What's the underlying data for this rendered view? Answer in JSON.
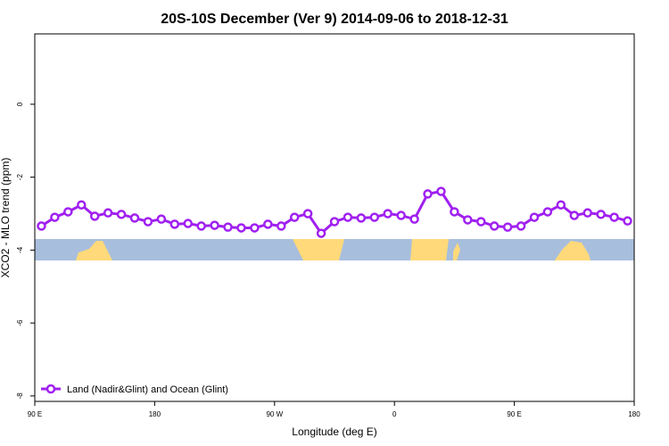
{
  "chart_data": {
    "type": "line",
    "title": "20S-10S December (Ver 9)   2014-09-06 to 2018-12-31",
    "xlabel": "Longitude (deg E)",
    "ylabel": "XCO2 - MLO trend (ppm)",
    "x": [
      95,
      105,
      115,
      125,
      135,
      145,
      155,
      165,
      175,
      185,
      195,
      205,
      215,
      225,
      235,
      245,
      255,
      265,
      275,
      285,
      295,
      305,
      315,
      325,
      335,
      345,
      355,
      365,
      375,
      385,
      395,
      405,
      415,
      425,
      435,
      445,
      455,
      465,
      475,
      485,
      495,
      505,
      515,
      525,
      535
    ],
    "series": [
      {
        "name": "Land (Nadir&Glint) and Ocean (Glint)",
        "color": "#a020f0",
        "values": [
          -3.34,
          -3.1,
          -2.95,
          -2.76,
          -3.07,
          -2.98,
          -3.02,
          -3.12,
          -3.22,
          -3.15,
          -3.29,
          -3.27,
          -3.34,
          -3.32,
          -3.37,
          -3.39,
          -3.39,
          -3.29,
          -3.34,
          -3.1,
          -3.0,
          -3.54,
          -3.22,
          -3.1,
          -3.12,
          -3.1,
          -3.0,
          -3.05,
          -3.15,
          -2.46,
          -2.39,
          -2.95,
          -3.17,
          -3.22,
          -3.34,
          -3.37,
          -3.34,
          -3.1,
          -2.95,
          -2.76,
          -3.05,
          -2.98,
          -3.02,
          -3.1,
          -3.2
        ]
      }
    ],
    "xlim": [
      90,
      540
    ],
    "xticks": [
      {
        "value": 90,
        "label": "90 E"
      },
      180,
      {
        "value": 270,
        "label": "90 W"
      },
      {
        "value": 360,
        "label": "0"
      },
      {
        "value": 450,
        "label": "90 E"
      },
      {
        "value": 540,
        "label": "180"
      }
    ],
    "ylim": [
      -8.15,
      1.93
    ],
    "yticks": [
      0,
      -2,
      -4,
      -6,
      -8
    ],
    "legend": "bottom-left"
  }
}
